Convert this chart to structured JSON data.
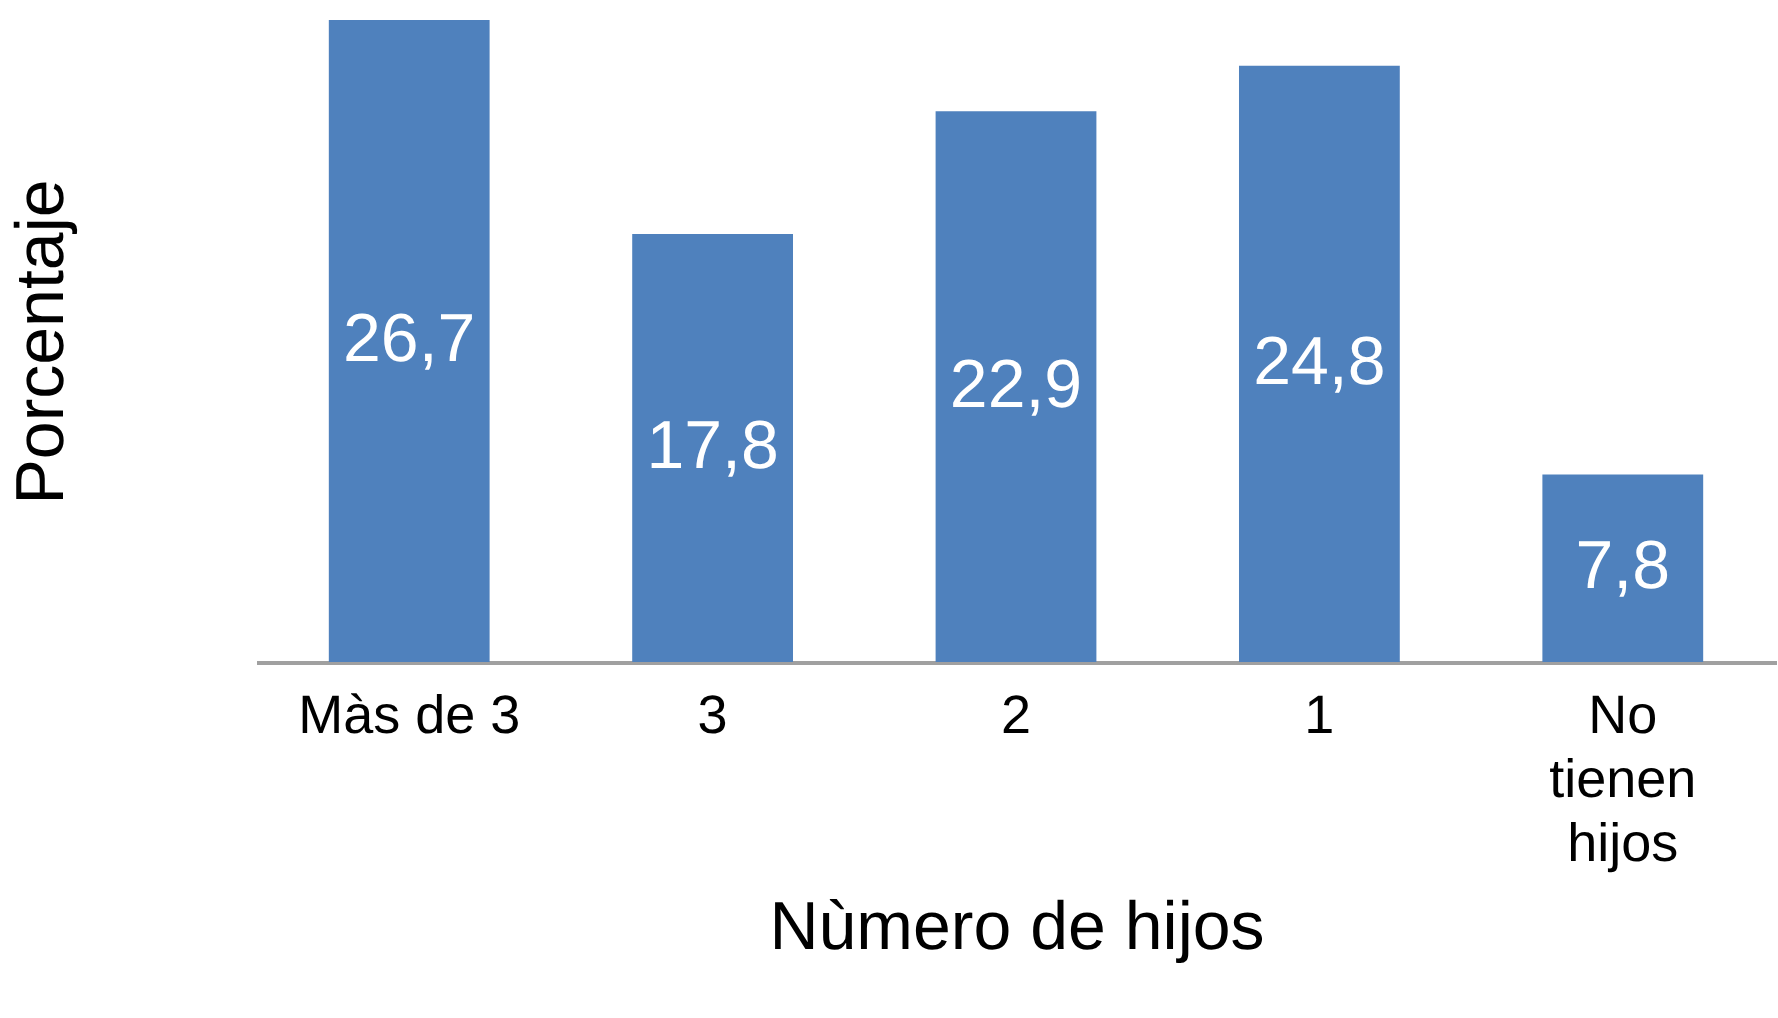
{
  "chart_data": {
    "type": "bar",
    "xlabel": "Nùmero de hijos",
    "ylabel": "Porcentaje",
    "categories": [
      "Màs de 3",
      "3",
      "2",
      "1",
      "No tienen hijos"
    ],
    "values": [
      26.7,
      17.8,
      22.9,
      24.8,
      7.8
    ],
    "value_labels": [
      "26,7",
      "17,8",
      "22,9",
      "24,8",
      "7,8"
    ],
    "color": "#4f81bd"
  }
}
